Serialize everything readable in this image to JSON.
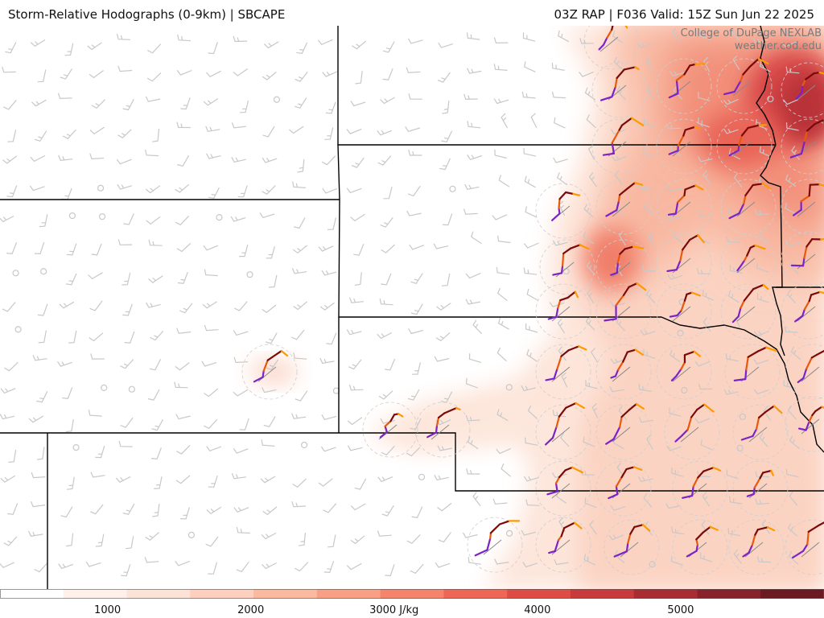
{
  "header": {
    "title": "Storm-Relative Hodographs (0-9km) | SBCAPE",
    "run_info": "03Z RAP | F036 Valid: 15Z Sun Jun 22 2025"
  },
  "credit": {
    "line1": "College of DuPage NEXLAB",
    "line2": "weather.cod.edu"
  },
  "colorbar": {
    "unit": "J/kg",
    "ticks": [
      "1000",
      "2000",
      "3000 J/kg",
      "4000",
      "5000"
    ],
    "tick_values": [
      1000,
      2000,
      3000,
      4000,
      5000
    ],
    "min": 250,
    "max": 6000,
    "colors": [
      "#ffffff",
      "#fff1ea",
      "#fde3d7",
      "#fcd0bc",
      "#fbb9a0",
      "#f99f85",
      "#f5846b",
      "#ee6754",
      "#df4b45",
      "#c83a3c",
      "#a92c33",
      "#87222a",
      "#6b1a22"
    ]
  },
  "colors": {
    "hodograph_low": "#7b22c8",
    "hodograph_mid": "#e8590c",
    "hodograph_high": "#ff9900",
    "hodograph_deep": "#7a0a0a",
    "barb": "#c8c8c8",
    "border": "#000000"
  }
}
